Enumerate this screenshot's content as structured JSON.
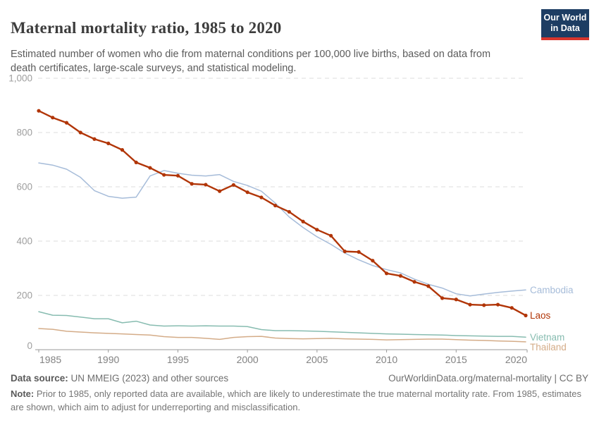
{
  "header": {
    "title": "Maternal mortality ratio, 1985 to 2020",
    "subtitle": "Estimated number of women who die from maternal conditions per 100,000 live births, based on data from death certificates, large-scale surveys, and statistical modeling.",
    "logo": {
      "line1": "Our World",
      "line2": "in Data",
      "bg_color": "#1d3d63",
      "stripe_color": "#d8352c"
    }
  },
  "chart_data": {
    "type": "line",
    "title": "Maternal mortality ratio, 1985 to 2020",
    "xlabel": "",
    "ylabel": "",
    "ylim": [
      0,
      1000
    ],
    "grid": "horizontal-dashed",
    "legend_position": "right-end-labels",
    "x": [
      1985,
      1986,
      1987,
      1988,
      1989,
      1990,
      1991,
      1992,
      1993,
      1994,
      1995,
      1996,
      1997,
      1998,
      1999,
      2000,
      2001,
      2002,
      2003,
      2004,
      2005,
      2006,
      2007,
      2008,
      2009,
      2010,
      2011,
      2012,
      2013,
      2014,
      2015,
      2016,
      2017,
      2018,
      2019,
      2020
    ],
    "xticks": [
      1985,
      1990,
      1995,
      2000,
      2005,
      2010,
      2015,
      2020
    ],
    "yticks": [
      0,
      200,
      400,
      600,
      800,
      1000
    ],
    "ytick_labels": [
      "0",
      "200",
      "400",
      "600",
      "800",
      "1,000"
    ],
    "series": [
      {
        "name": "Cambodia",
        "color": "#a6bcd9",
        "highlight": false,
        "values": [
          688,
          680,
          665,
          635,
          586,
          565,
          558,
          562,
          640,
          660,
          650,
          643,
          640,
          645,
          620,
          605,
          584,
          540,
          489,
          450,
          416,
          388,
          356,
          331,
          310,
          295,
          283,
          260,
          241,
          227,
          206,
          198,
          205,
          211,
          216,
          220
        ]
      },
      {
        "name": "Laos",
        "color": "#b13507",
        "highlight": true,
        "values": [
          880,
          855,
          836,
          800,
          776,
          760,
          736,
          690,
          670,
          644,
          641,
          611,
          608,
          584,
          607,
          580,
          561,
          531,
          508,
          472,
          442,
          420,
          362,
          360,
          328,
          281,
          272,
          250,
          234,
          190,
          185,
          166,
          164,
          166,
          154,
          126
        ]
      },
      {
        "name": "Vietnam",
        "color": "#87bcb0",
        "highlight": false,
        "values": [
          140,
          127,
          126,
          120,
          114,
          114,
          99,
          105,
          91,
          87,
          88,
          87,
          88,
          87,
          87,
          85,
          74,
          70,
          70,
          69,
          68,
          66,
          64,
          62,
          60,
          58,
          57,
          56,
          55,
          54,
          52,
          51,
          50,
          49,
          49,
          46
        ]
      },
      {
        "name": "Thailand",
        "color": "#d4ac88",
        "highlight": false,
        "values": [
          78,
          75,
          68,
          65,
          62,
          60,
          58,
          56,
          54,
          48,
          45,
          45,
          42,
          38,
          45,
          48,
          49,
          43,
          41,
          40,
          41,
          42,
          40,
          39,
          38,
          36,
          37,
          38,
          39,
          39,
          37,
          35,
          34,
          32,
          31,
          29
        ]
      }
    ],
    "axis_colors": {
      "grid": "#dedede",
      "axis_line": "#999999",
      "y_label": "#9e9e9e",
      "x_label": "#828282"
    }
  },
  "footer": {
    "source_label": "Data source:",
    "source_value": "UN MMEIG (2023) and other sources",
    "credit": "OurWorldinData.org/maternal-mortality | CC BY",
    "note_label": "Note:",
    "note_text": "Prior to 1985, only reported data are available, which are likely to underestimate the true maternal mortality rate. From 1985, estimates are shown, which aim to adjust for underreporting and misclassification."
  }
}
